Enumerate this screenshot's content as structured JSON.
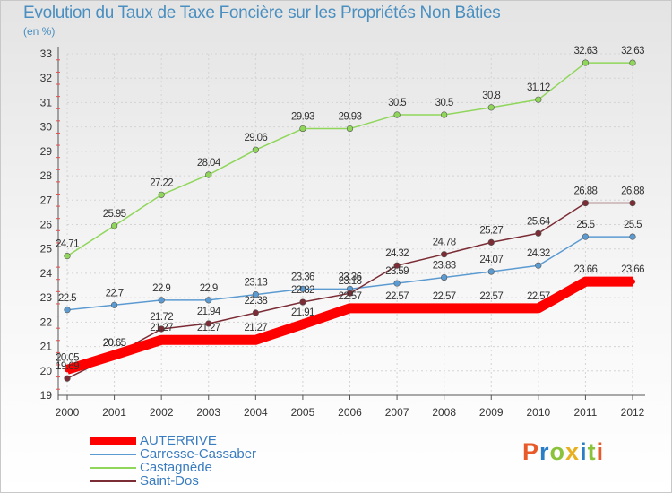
{
  "title": "Evolution du Taux de Taxe Foncière sur les Propriétés Non Bâties",
  "subtitle": "(en %)",
  "brand": "Proxiti",
  "chart_data": {
    "type": "line",
    "x": [
      "2000",
      "2001",
      "2002",
      "2003",
      "2004",
      "2005",
      "2006",
      "2007",
      "2008",
      "2009",
      "2010",
      "2011",
      "2012"
    ],
    "ylim": [
      19,
      33
    ],
    "yticks": [
      19,
      20,
      21,
      22,
      23,
      24,
      25,
      26,
      27,
      28,
      29,
      30,
      31,
      32,
      33
    ],
    "grid": true,
    "legend_position": "bottom-left",
    "series": [
      {
        "name": "AUTERRIVE",
        "color": "#ff0000",
        "values": [
          20.05,
          20.65,
          21.27,
          21.27,
          21.27,
          21.91,
          22.57,
          22.57,
          22.57,
          22.57,
          22.57,
          23.66,
          23.66
        ],
        "labels": [
          "20.05",
          "20.65",
          "21.27",
          "21.27",
          "21.27",
          "21.91",
          "22.57",
          "22.57",
          "22.57",
          "22.57",
          "22.57",
          "23.66",
          "23.66"
        ]
      },
      {
        "name": "Carresse-Cassaber",
        "color": "#5c9bd1",
        "values": [
          22.5,
          22.7,
          22.9,
          22.9,
          23.13,
          23.36,
          23.36,
          23.59,
          23.83,
          24.07,
          24.32,
          25.5,
          25.5
        ],
        "labels": [
          "22.5",
          "22.7",
          "22.9",
          "22.9",
          "23.13",
          "23.36",
          "23.36",
          "23.59",
          "23.83",
          "24.07",
          "24.32",
          "25.5",
          "25.5"
        ]
      },
      {
        "name": "Castagnède",
        "color": "#8fd65a",
        "values": [
          24.71,
          25.95,
          27.22,
          28.04,
          29.06,
          29.93,
          29.93,
          30.5,
          30.5,
          30.8,
          31.12,
          32.63,
          32.63
        ],
        "labels": [
          "24.71",
          "25.95",
          "27.22",
          "28.04",
          "29.06",
          "29.93",
          "29.93",
          "30.5",
          "30.5",
          "30.8",
          "31.12",
          "32.63",
          "32.63"
        ]
      },
      {
        "name": "Saint-Dos",
        "color": "#7b2c35",
        "values": [
          19.69,
          20.65,
          21.72,
          21.94,
          22.38,
          22.82,
          23.18,
          24.32,
          24.78,
          25.27,
          25.64,
          26.88,
          26.88
        ],
        "labels": [
          "19.69",
          "20.65",
          "21.72",
          "21.94",
          "22.38",
          "22.82",
          "23.18",
          "24.32",
          "24.78",
          "25.27",
          "25.64",
          "26.88",
          "26.88"
        ]
      }
    ]
  }
}
